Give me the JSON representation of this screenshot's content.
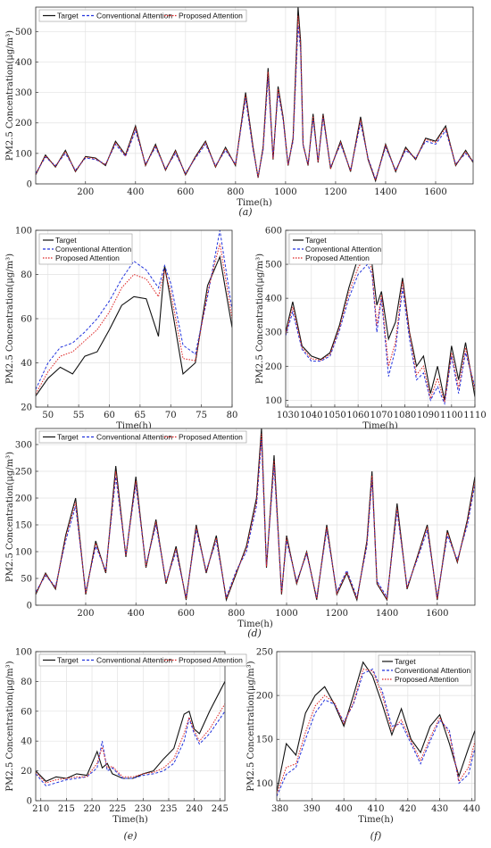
{
  "legend_labels": [
    "Target",
    "Conventional Attention",
    "Proposed Attention"
  ],
  "colors": {
    "target": "#111111",
    "conventional": "#2233dd",
    "proposed": "#dd2222"
  },
  "chart_data": [
    {
      "type": "line",
      "caption": "(a)",
      "xlabel": "Time(h)",
      "ylabel": "PM2.5 Concentration(μg/m³)",
      "xlim": [
        1,
        1750
      ],
      "ylim": [
        0,
        580
      ],
      "xticks": [
        200,
        400,
        600,
        800,
        1000,
        1200,
        1400,
        1600
      ],
      "yticks": [
        0,
        100,
        200,
        300,
        400,
        500
      ],
      "grid": true,
      "legend": "top-left horizontal",
      "x": [
        1,
        40,
        80,
        120,
        160,
        200,
        240,
        280,
        320,
        360,
        400,
        440,
        480,
        520,
        560,
        600,
        640,
        680,
        720,
        760,
        800,
        840,
        870,
        890,
        910,
        930,
        950,
        970,
        990,
        1010,
        1030,
        1050,
        1060,
        1070,
        1090,
        1110,
        1130,
        1150,
        1180,
        1220,
        1260,
        1300,
        1330,
        1360,
        1400,
        1440,
        1480,
        1520,
        1560,
        1600,
        1640,
        1680,
        1720,
        1750
      ],
      "series": [
        {
          "name": "Target",
          "values": [
            30,
            95,
            55,
            110,
            40,
            90,
            85,
            60,
            140,
            95,
            190,
            60,
            130,
            45,
            110,
            30,
            90,
            140,
            55,
            120,
            60,
            300,
            120,
            20,
            120,
            380,
            80,
            320,
            220,
            60,
            150,
            580,
            470,
            130,
            60,
            230,
            70,
            230,
            50,
            140,
            40,
            220,
            80,
            10,
            130,
            40,
            120,
            80,
            150,
            140,
            190,
            60,
            110,
            70
          ]
        },
        {
          "name": "Conventional Attention",
          "values": [
            35,
            88,
            60,
            100,
            45,
            85,
            80,
            65,
            130,
            90,
            175,
            65,
            120,
            50,
            100,
            35,
            85,
            130,
            60,
            110,
            65,
            280,
            110,
            25,
            110,
            350,
            85,
            300,
            210,
            65,
            140,
            520,
            440,
            125,
            65,
            210,
            75,
            215,
            55,
            130,
            45,
            200,
            85,
            15,
            120,
            45,
            110,
            85,
            140,
            130,
            175,
            65,
            100,
            75
          ]
        },
        {
          "name": "Proposed Attention",
          "values": [
            32,
            92,
            57,
            106,
            42,
            88,
            83,
            62,
            136,
            93,
            184,
            62,
            126,
            47,
            106,
            32,
            88,
            136,
            57,
            116,
            62,
            292,
            116,
            22,
            116,
            368,
            82,
            312,
            216,
            62,
            146,
            552,
            458,
            128,
            62,
            222,
            72,
            224,
            52,
            136,
            42,
            212,
            82,
            12,
            126,
            42,
            116,
            82,
            146,
            136,
            184,
            62,
            106,
            72
          ]
        }
      ]
    },
    {
      "type": "line",
      "caption": "(b)",
      "xlabel": "Time(h)",
      "ylabel": "PM2.5 Concentration(μg/m³)",
      "xlim": [
        48,
        80
      ],
      "ylim": [
        20,
        100
      ],
      "xticks": [
        50,
        55,
        60,
        65,
        70,
        75,
        80
      ],
      "yticks": [
        20,
        40,
        60,
        80,
        100
      ],
      "grid": true,
      "legend": "top-left",
      "x": [
        48,
        50,
        52,
        54,
        56,
        58,
        60,
        62,
        64,
        66,
        68,
        69,
        70,
        72,
        74,
        76,
        78,
        80
      ],
      "series": [
        {
          "name": "Target",
          "values": [
            25,
            33,
            38,
            35,
            43,
            45,
            55,
            66,
            70,
            69,
            52,
            84,
            68,
            35,
            40,
            75,
            88,
            56
          ]
        },
        {
          "name": "Conventional Attention",
          "values": [
            28,
            40,
            47,
            49,
            54,
            60,
            68,
            78,
            86,
            82,
            74,
            84,
            76,
            48,
            44,
            70,
            100,
            64
          ]
        },
        {
          "name": "Proposed Attention",
          "values": [
            26,
            36,
            43,
            45,
            50,
            55,
            63,
            74,
            80,
            78,
            70,
            82,
            72,
            42,
            41,
            72,
            94,
            60
          ]
        }
      ]
    },
    {
      "type": "line",
      "caption": "(c)",
      "xlabel": "Time(h)",
      "ylabel": "PM2.5 Concentration(μg/m³)",
      "xlim": [
        1029,
        1110
      ],
      "ylim": [
        80,
        600
      ],
      "xticks": [
        1030,
        1040,
        1050,
        1060,
        1070,
        1080,
        1090,
        1100,
        1110
      ],
      "yticks": [
        100,
        200,
        300,
        400,
        500,
        600
      ],
      "grid": true,
      "legend": "top-left",
      "x": [
        1029,
        1032,
        1036,
        1040,
        1044,
        1048,
        1052,
        1056,
        1060,
        1064,
        1066,
        1068,
        1070,
        1073,
        1076,
        1079,
        1082,
        1085,
        1088,
        1091,
        1094,
        1097,
        1100,
        1103,
        1106,
        1110
      ],
      "series": [
        {
          "name": "Target",
          "values": [
            300,
            390,
            260,
            230,
            220,
            240,
            320,
            430,
            520,
            580,
            500,
            380,
            420,
            280,
            330,
            460,
            300,
            200,
            230,
            120,
            200,
            100,
            260,
            160,
            270,
            110
          ]
        },
        {
          "name": "Conventional Attention",
          "values": [
            290,
            360,
            250,
            215,
            215,
            230,
            305,
            400,
            470,
            500,
            470,
            300,
            400,
            170,
            250,
            430,
            280,
            160,
            180,
            100,
            140,
            90,
            230,
            120,
            240,
            140
          ]
        },
        {
          "name": "Proposed Attention",
          "values": [
            295,
            375,
            255,
            222,
            218,
            235,
            312,
            415,
            490,
            530,
            480,
            320,
            410,
            200,
            270,
            450,
            300,
            175,
            200,
            105,
            165,
            95,
            240,
            135,
            255,
            130
          ]
        }
      ]
    },
    {
      "type": "line",
      "caption": "(d)",
      "xlabel": "Time(h)",
      "ylabel": "PM2.5 Concentration(μg/m³)",
      "xlim": [
        1,
        1750
      ],
      "ylim": [
        0,
        330
      ],
      "xticks": [
        200,
        400,
        600,
        800,
        1000,
        1200,
        1400,
        1600
      ],
      "yticks": [
        0,
        50,
        100,
        150,
        200,
        250,
        300
      ],
      "grid": true,
      "legend": "top-left horizontal",
      "x": [
        1,
        40,
        80,
        120,
        160,
        200,
        240,
        280,
        320,
        360,
        400,
        440,
        480,
        520,
        560,
        600,
        640,
        680,
        720,
        760,
        800,
        840,
        880,
        900,
        920,
        950,
        980,
        1000,
        1040,
        1080,
        1120,
        1160,
        1200,
        1240,
        1280,
        1320,
        1340,
        1360,
        1400,
        1440,
        1480,
        1520,
        1560,
        1600,
        1640,
        1680,
        1720,
        1750
      ],
      "series": [
        {
          "name": "Target",
          "values": [
            20,
            60,
            30,
            130,
            200,
            20,
            120,
            60,
            260,
            90,
            240,
            70,
            160,
            40,
            110,
            10,
            150,
            60,
            130,
            10,
            60,
            110,
            200,
            330,
            70,
            280,
            20,
            130,
            40,
            100,
            10,
            150,
            20,
            60,
            10,
            120,
            250,
            40,
            10,
            190,
            30,
            90,
            150,
            10,
            140,
            80,
            160,
            240
          ]
        },
        {
          "name": "Conventional Attention",
          "values": [
            25,
            55,
            35,
            120,
            185,
            25,
            110,
            65,
            240,
            95,
            225,
            75,
            150,
            45,
            100,
            15,
            140,
            65,
            120,
            15,
            65,
            100,
            185,
            310,
            75,
            260,
            25,
            120,
            45,
            95,
            15,
            140,
            25,
            65,
            15,
            110,
            235,
            45,
            15,
            175,
            35,
            85,
            140,
            15,
            130,
            85,
            150,
            225
          ]
        },
        {
          "name": "Proposed Attention",
          "values": [
            22,
            58,
            32,
            126,
            192,
            22,
            116,
            62,
            250,
            92,
            232,
            72,
            156,
            42,
            106,
            12,
            146,
            62,
            126,
            12,
            62,
            106,
            192,
            320,
            72,
            270,
            22,
            126,
            42,
            98,
            12,
            146,
            22,
            62,
            12,
            116,
            242,
            42,
            12,
            182,
            32,
            88,
            146,
            12,
            136,
            82,
            156,
            232
          ]
        }
      ]
    },
    {
      "type": "line",
      "caption": "(e)",
      "xlabel": "Time(h)",
      "ylabel": "PM2.5 Concentration(μg/m³)",
      "xlim": [
        209,
        246
      ],
      "ylim": [
        0,
        100
      ],
      "xticks": [
        210,
        215,
        220,
        225,
        230,
        235,
        240,
        245
      ],
      "yticks": [
        0,
        20,
        40,
        60,
        80,
        100
      ],
      "grid": true,
      "legend": "top-left horizontal",
      "x": [
        209,
        211,
        213,
        215,
        217,
        219,
        221,
        222,
        223,
        224,
        226,
        228,
        230,
        232,
        234,
        236,
        238,
        239,
        240,
        241,
        243,
        246
      ],
      "series": [
        {
          "name": "Target",
          "values": [
            20,
            13,
            16,
            15,
            18,
            17,
            33,
            22,
            25,
            18,
            15,
            15,
            18,
            20,
            28,
            35,
            58,
            60,
            48,
            45,
            60,
            80
          ]
        },
        {
          "name": "Conventional Attention",
          "values": [
            18,
            10,
            12,
            14,
            15,
            16,
            22,
            40,
            20,
            22,
            15,
            15,
            17,
            18,
            20,
            25,
            40,
            55,
            45,
            38,
            45,
            60
          ]
        },
        {
          "name": "Proposed Attention",
          "values": [
            19,
            12,
            14,
            15,
            16,
            16,
            25,
            36,
            22,
            23,
            16,
            16,
            18,
            19,
            22,
            28,
            45,
            56,
            47,
            40,
            48,
            65
          ]
        }
      ]
    },
    {
      "type": "line",
      "caption": "(f)",
      "xlabel": "Time(h)",
      "ylabel": "PM2.5 Concentration(μg/m³)",
      "xlim": [
        379,
        441
      ],
      "ylim": [
        80,
        250
      ],
      "xticks": [
        380,
        390,
        400,
        410,
        420,
        430,
        440
      ],
      "yticks": [
        100,
        150,
        200,
        250
      ],
      "grid": true,
      "legend": "top-right",
      "x": [
        379,
        382,
        385,
        388,
        391,
        394,
        397,
        400,
        403,
        406,
        409,
        412,
        415,
        418,
        421,
        424,
        427,
        430,
        433,
        436,
        439,
        441
      ],
      "series": [
        {
          "name": "Target",
          "values": [
            90,
            145,
            132,
            180,
            200,
            210,
            190,
            165,
            200,
            238,
            222,
            190,
            155,
            185,
            150,
            135,
            165,
            178,
            145,
            108,
            140,
            160
          ]
        },
        {
          "name": "Conventional Attention",
          "values": [
            85,
            110,
            118,
            150,
            180,
            195,
            190,
            170,
            190,
            225,
            230,
            205,
            165,
            168,
            145,
            122,
            148,
            172,
            160,
            100,
            110,
            140
          ]
        },
        {
          "name": "Proposed Attention",
          "values": [
            88,
            118,
            122,
            158,
            188,
            200,
            192,
            168,
            192,
            230,
            228,
            200,
            160,
            172,
            148,
            126,
            152,
            175,
            156,
            102,
            118,
            148
          ]
        }
      ]
    }
  ]
}
